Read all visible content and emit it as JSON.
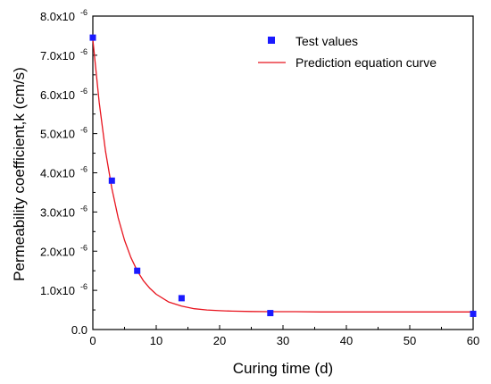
{
  "chart_data": {
    "type": "scatter",
    "xlabel": "Curing time (d)",
    "ylabel": "Permeability coefficient,k (cm/s)",
    "xlim": [
      0,
      60
    ],
    "ylim": [
      0,
      8e-06
    ],
    "x_ticks": [
      0,
      10,
      20,
      30,
      40,
      50,
      60
    ],
    "x_tick_labels": [
      "0",
      "10",
      "20",
      "30",
      "40",
      "50",
      "60"
    ],
    "y_ticks": [
      0,
      1e-06,
      2e-06,
      3e-06,
      4e-06,
      5e-06,
      6e-06,
      7e-06,
      8e-06
    ],
    "y_tick_labels": [
      {
        "base": "0.0",
        "exp": ""
      },
      {
        "base": "1.0x10",
        "exp": "-6"
      },
      {
        "base": "2.0x10",
        "exp": "-6"
      },
      {
        "base": "3.0x10",
        "exp": "-6"
      },
      {
        "base": "4.0x10",
        "exp": "-6"
      },
      {
        "base": "5.0x10",
        "exp": "-6"
      },
      {
        "base": "6.0x10",
        "exp": "-6"
      },
      {
        "base": "7.0x10",
        "exp": "-6"
      },
      {
        "base": "8.0x10",
        "exp": "-6"
      }
    ],
    "grid": false,
    "legend_position": "top-right",
    "series": [
      {
        "name": "Test values",
        "kind": "scatter",
        "marker": "square",
        "color": "#1a1aff",
        "x": [
          0,
          3,
          7,
          14,
          28,
          60
        ],
        "y": [
          7.45e-06,
          3.8e-06,
          1.5e-06,
          8e-07,
          4.2e-07,
          4e-07
        ]
      },
      {
        "name": "Prediction equation curve",
        "kind": "line",
        "color": "#e8141e",
        "x": [
          0,
          1,
          2,
          3,
          4,
          5,
          6,
          7,
          8,
          9,
          10,
          12,
          14,
          16,
          18,
          20,
          22,
          25,
          28,
          32,
          36,
          40,
          45,
          50,
          55,
          60
        ],
        "y": [
          7.4e-06,
          5.8e-06,
          4.55e-06,
          3.6e-06,
          2.85e-06,
          2.28e-06,
          1.84e-06,
          1.5e-06,
          1.24e-06,
          1.05e-06,
          9e-07,
          7e-07,
          6e-07,
          5.3e-07,
          5e-07,
          4.8e-07,
          4.7e-07,
          4.6e-07,
          4.55e-07,
          4.55e-07,
          4.5e-07,
          4.5e-07,
          4.5e-07,
          4.5e-07,
          4.5e-07,
          4.5e-07
        ]
      }
    ]
  }
}
